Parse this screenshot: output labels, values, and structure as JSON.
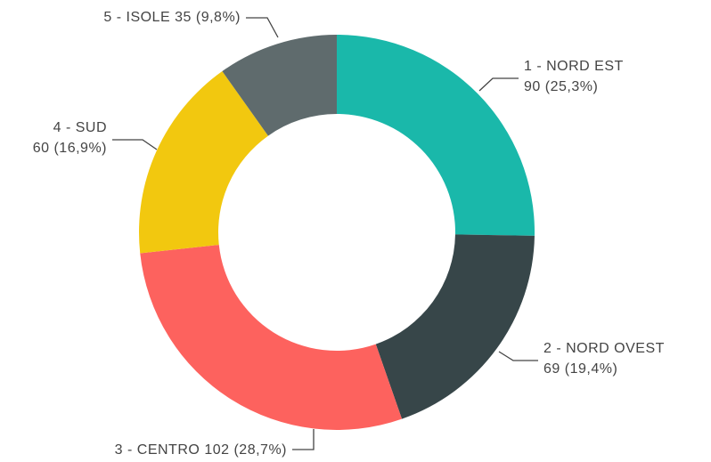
{
  "chart_data": {
    "type": "donut",
    "categories": [
      "1 - NORD EST",
      "2 - NORD OVEST",
      "3 - CENTRO",
      "4 - SUD",
      "5 - ISOLE"
    ],
    "values": [
      90,
      69,
      102,
      60,
      35
    ],
    "value_labels": [
      "90 (25,3%)",
      "69 (19,4%)",
      "102 (28,7%)",
      "60 (16,9%)",
      "35 (9,8%)"
    ],
    "colors": [
      "#1ab8aa",
      "#374649",
      "#fd625e",
      "#f2c80f",
      "#5f6b6d"
    ]
  }
}
